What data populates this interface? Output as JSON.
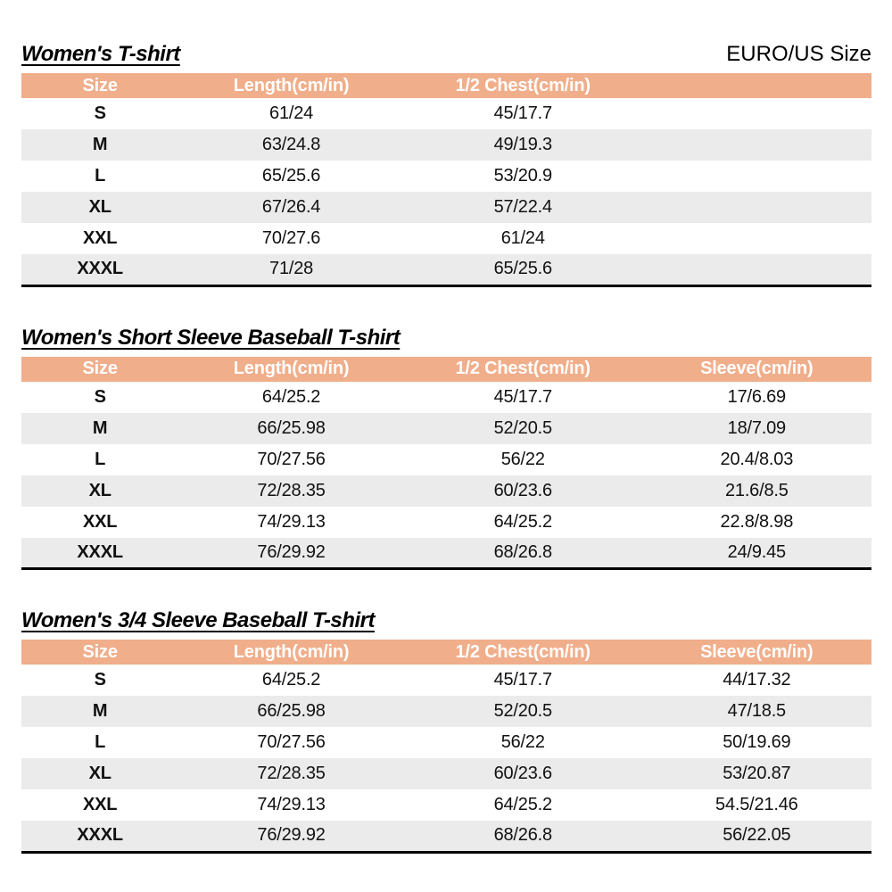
{
  "page": {
    "region_label": "EURO/US Size"
  },
  "colors": {
    "header_bg": "#F0AE8B",
    "row_alt_bg": "#EBEBEB",
    "header_text": "#FFFFFF",
    "body_text": "#111111"
  },
  "tables": [
    {
      "title": "Women's T-shirt",
      "columns": [
        "Size",
        "Length(cm/in)",
        "1/2 Chest(cm/in)",
        ""
      ],
      "rows": [
        [
          "S",
          "61/24",
          "45/17.7",
          ""
        ],
        [
          "M",
          "63/24.8",
          "49/19.3",
          ""
        ],
        [
          "L",
          "65/25.6",
          "53/20.9",
          ""
        ],
        [
          "XL",
          "67/26.4",
          "57/22.4",
          ""
        ],
        [
          "XXL",
          "70/27.6",
          "61/24",
          ""
        ],
        [
          "XXXL",
          "71/28",
          "65/25.6",
          ""
        ]
      ]
    },
    {
      "title": "Women's Short Sleeve Baseball T-shirt",
      "columns": [
        "Size",
        "Length(cm/in)",
        "1/2 Chest(cm/in)",
        "Sleeve(cm/in)"
      ],
      "rows": [
        [
          "S",
          "64/25.2",
          "45/17.7",
          "17/6.69"
        ],
        [
          "M",
          "66/25.98",
          "52/20.5",
          "18/7.09"
        ],
        [
          "L",
          "70/27.56",
          "56/22",
          "20.4/8.03"
        ],
        [
          "XL",
          "72/28.35",
          "60/23.6",
          "21.6/8.5"
        ],
        [
          "XXL",
          "74/29.13",
          "64/25.2",
          "22.8/8.98"
        ],
        [
          "XXXL",
          "76/29.92",
          "68/26.8",
          "24/9.45"
        ]
      ]
    },
    {
      "title": "Women's 3/4 Sleeve Baseball T-shirt",
      "columns": [
        "Size",
        "Length(cm/in)",
        "1/2 Chest(cm/in)",
        "Sleeve(cm/in)"
      ],
      "rows": [
        [
          "S",
          "64/25.2",
          "45/17.7",
          "44/17.32"
        ],
        [
          "M",
          "66/25.98",
          "52/20.5",
          "47/18.5"
        ],
        [
          "L",
          "70/27.56",
          "56/22",
          "50/19.69"
        ],
        [
          "XL",
          "72/28.35",
          "60/23.6",
          "53/20.87"
        ],
        [
          "XXL",
          "74/29.13",
          "64/25.2",
          "54.5/21.46"
        ],
        [
          "XXXL",
          "76/29.92",
          "68/26.8",
          "56/22.05"
        ]
      ]
    }
  ]
}
